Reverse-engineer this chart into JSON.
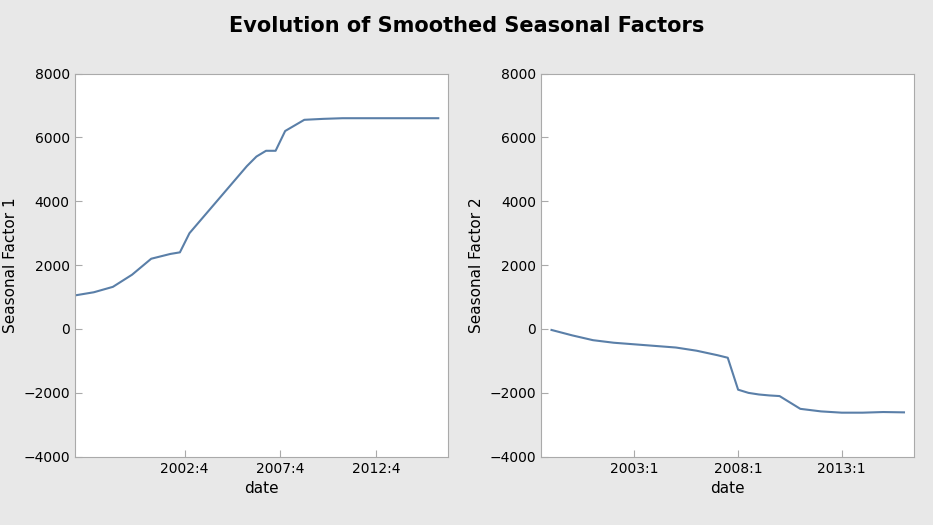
{
  "title": "Evolution of Smoothed Seasonal Factors",
  "title_fontsize": 15,
  "title_fontweight": "bold",
  "line_color": "#5a7fa8",
  "line_width": 1.5,
  "plot_bg": "#ffffff",
  "outer_bg": "#e8e8e8",
  "spine_color": "#aaaaaa",
  "panel1": {
    "ylabel": "Seasonal Factor 1",
    "xlabel": "date",
    "ylim": [
      -4000,
      8000
    ],
    "yticks": [
      -4000,
      -2000,
      0,
      2000,
      4000,
      6000,
      8000
    ],
    "xtick_positions": [
      2002.75,
      2007.75,
      2012.75
    ],
    "xtick_labels": [
      "2002:4",
      "2007:4",
      "2012:4"
    ],
    "xlim": [
      1997.0,
      2016.5
    ],
    "x": [
      1997.0,
      1998.0,
      1999.0,
      2000.0,
      2001.0,
      2002.0,
      2002.5,
      2003.0,
      2004.0,
      2005.0,
      2006.0,
      2006.5,
      2007.0,
      2007.5,
      2008.0,
      2009.0,
      2010.0,
      2011.0,
      2012.0,
      2013.0,
      2014.0,
      2015.0,
      2016.0
    ],
    "y": [
      1050,
      1150,
      1320,
      1700,
      2200,
      2350,
      2400,
      3000,
      3700,
      4400,
      5100,
      5400,
      5580,
      5580,
      6200,
      6550,
      6580,
      6600,
      6600,
      6600,
      6600,
      6600,
      6600
    ]
  },
  "panel2": {
    "ylabel": "Seasonal Factor 2",
    "xlabel": "date",
    "ylim": [
      -4000,
      8000
    ],
    "yticks": [
      -4000,
      -2000,
      0,
      2000,
      4000,
      6000,
      8000
    ],
    "xtick_positions": [
      2003.0,
      2008.0,
      2013.0
    ],
    "xtick_labels": [
      "2003:1",
      "2008:1",
      "2013:1"
    ],
    "xlim": [
      1998.5,
      2016.5
    ],
    "x": [
      1999.0,
      2000.0,
      2001.0,
      2002.0,
      2003.0,
      2004.0,
      2005.0,
      2006.0,
      2006.5,
      2007.0,
      2007.5,
      2008.0,
      2008.5,
      2009.0,
      2009.5,
      2010.0,
      2011.0,
      2012.0,
      2013.0,
      2014.0,
      2015.0,
      2016.0
    ],
    "y": [
      -30,
      -200,
      -350,
      -430,
      -480,
      -530,
      -580,
      -680,
      -750,
      -820,
      -900,
      -1900,
      -2000,
      -2050,
      -2080,
      -2100,
      -2500,
      -2580,
      -2620,
      -2620,
      -2600,
      -2610
    ]
  }
}
